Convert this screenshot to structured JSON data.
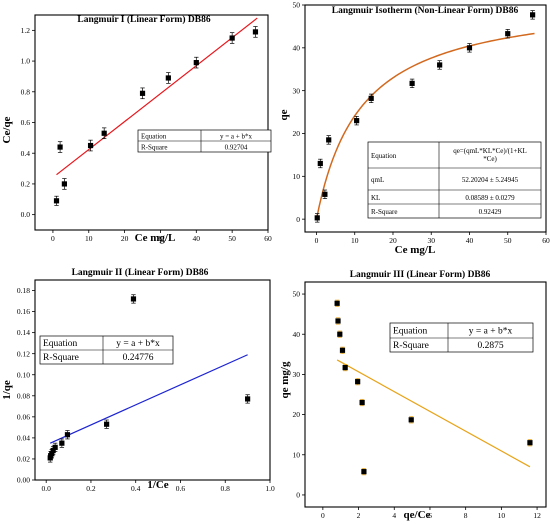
{
  "chart_data": [
    {
      "type": "scatter",
      "title": "Langmuir I (Linear Form) DB86",
      "xlabel": "Ce mg/L",
      "ylabel": "Ce/qe",
      "xlim": [
        -5,
        60
      ],
      "ylim": [
        -0.1,
        1.3
      ],
      "xticks": [
        "0",
        "10",
        "20",
        "30",
        "40",
        "50",
        "60"
      ],
      "yticks": [
        "0.0",
        "0.2",
        "0.4",
        "0.6",
        "0.8",
        "1.0",
        "1.2"
      ],
      "grid": false,
      "colors": {
        "points": "#000000",
        "fit": "#e8161c"
      },
      "points": [
        {
          "x": 1.0,
          "y": 0.09,
          "err": 0.03
        },
        {
          "x": 2.0,
          "y": 0.44,
          "err": 0.035
        },
        {
          "x": 3.2,
          "y": 0.2,
          "err": 0.035
        },
        {
          "x": 10.5,
          "y": 0.45,
          "err": 0.035
        },
        {
          "x": 14.3,
          "y": 0.53,
          "err": 0.035
        },
        {
          "x": 25.0,
          "y": 0.79,
          "err": 0.035
        },
        {
          "x": 32.2,
          "y": 0.89,
          "err": 0.035
        },
        {
          "x": 40.0,
          "y": 0.99,
          "err": 0.035
        },
        {
          "x": 50.0,
          "y": 1.15,
          "err": 0.035
        },
        {
          "x": 56.5,
          "y": 1.19,
          "err": 0.035
        }
      ],
      "fit": {
        "x": [
          1,
          57
        ],
        "y": [
          0.26,
          1.28
        ]
      },
      "table": [
        [
          "Equation",
          "y = a + b*x"
        ],
        [
          "R-Square",
          "0.92704"
        ]
      ]
    },
    {
      "type": "scatter",
      "title": "Langmuir Isotherm (Non-Linear Form) DB86",
      "xlabel": "Ce mg/L",
      "ylabel": "qe",
      "xlim": [
        -3,
        60
      ],
      "ylim": [
        -3,
        50
      ],
      "xticks": [
        "0",
        "10",
        "20",
        "30",
        "40",
        "50",
        "60"
      ],
      "yticks": [
        "0",
        "10",
        "20",
        "30",
        "40",
        "50"
      ],
      "grid": false,
      "colors": {
        "points": "#000000",
        "fit": "#d2691e"
      },
      "points": [
        {
          "x": 0.2,
          "y": 0.3,
          "err": 1.0
        },
        {
          "x": 1.0,
          "y": 13.0,
          "err": 1.0
        },
        {
          "x": 2.2,
          "y": 5.8,
          "err": 1.0
        },
        {
          "x": 3.2,
          "y": 18.5,
          "err": 1.0
        },
        {
          "x": 10.5,
          "y": 23.0,
          "err": 1.0
        },
        {
          "x": 14.3,
          "y": 28.2,
          "err": 1.0
        },
        {
          "x": 25.0,
          "y": 31.7,
          "err": 1.0
        },
        {
          "x": 32.2,
          "y": 36.0,
          "err": 1.0
        },
        {
          "x": 40.0,
          "y": 40.0,
          "err": 1.0
        },
        {
          "x": 50.0,
          "y": 43.3,
          "err": 1.0
        },
        {
          "x": 56.5,
          "y": 47.7,
          "err": 1.0
        }
      ],
      "fit": {
        "model": "langmuir",
        "qmL": 52.20204,
        "KL": 0.08589,
        "x_from": 0,
        "x_to": 57
      },
      "table": [
        [
          "Equation",
          "qe=(qmL*KL*Ce)/(1+KL *Ce)"
        ],
        [
          "qmL",
          "52.20204 ± 5.24945"
        ],
        [
          "KL",
          "0.08589 ± 0.0279"
        ],
        [
          "R-Square",
          "0.92429"
        ]
      ]
    },
    {
      "type": "scatter",
      "title": "Langmuir II (Linear Form) DB86",
      "xlabel": "1/Ce",
      "ylabel": "1/qe",
      "xlim": [
        -0.05,
        1.0
      ],
      "ylim": [
        0.0,
        0.19
      ],
      "xticks": [
        "0.0",
        "0.2",
        "0.4",
        "0.6",
        "0.8",
        "1.0"
      ],
      "yticks": [
        "0.00",
        "0.02",
        "0.04",
        "0.06",
        "0.08",
        "0.10",
        "0.12",
        "0.14",
        "0.16",
        "0.18"
      ],
      "grid": false,
      "colors": {
        "points": "#000000",
        "fit": "#1c23d2"
      },
      "points": [
        {
          "x": 0.018,
          "y": 0.021,
          "err": 0.004
        },
        {
          "x": 0.02,
          "y": 0.023,
          "err": 0.004
        },
        {
          "x": 0.025,
          "y": 0.025,
          "err": 0.004
        },
        {
          "x": 0.031,
          "y": 0.028,
          "err": 0.004
        },
        {
          "x": 0.04,
          "y": 0.031,
          "err": 0.004
        },
        {
          "x": 0.07,
          "y": 0.035,
          "err": 0.004
        },
        {
          "x": 0.095,
          "y": 0.043,
          "err": 0.004
        },
        {
          "x": 0.27,
          "y": 0.053,
          "err": 0.004
        },
        {
          "x": 0.39,
          "y": 0.172,
          "err": 0.004
        },
        {
          "x": 0.9,
          "y": 0.077,
          "err": 0.004
        }
      ],
      "fit": {
        "x": [
          0.018,
          0.9
        ],
        "y": [
          0.035,
          0.119
        ]
      },
      "table": [
        [
          "Equation",
          "y = a + b*x"
        ],
        [
          "R-Square",
          "0.24776"
        ]
      ]
    },
    {
      "type": "scatter",
      "title": "Langmuir III (Linear Form) DB86",
      "xlabel": "qe/Ce",
      "ylabel": "qe mg/g",
      "xlim": [
        -1,
        12.5
      ],
      "ylim": [
        -3,
        53
      ],
      "xticks": [
        "0",
        "2",
        "4",
        "6",
        "8",
        "10",
        "12"
      ],
      "yticks": [
        "0",
        "10",
        "20",
        "30",
        "40",
        "50"
      ],
      "grid": false,
      "colors": {
        "points": "#000000",
        "fit": "#e8a317",
        "err": "#e8a317"
      },
      "points": [
        {
          "x": 0.8,
          "y": 47.7,
          "err": 0.8
        },
        {
          "x": 0.85,
          "y": 43.3,
          "err": 0.8
        },
        {
          "x": 0.95,
          "y": 40.0,
          "err": 0.8
        },
        {
          "x": 1.1,
          "y": 36.0,
          "err": 0.8
        },
        {
          "x": 1.25,
          "y": 31.7,
          "err": 0.8
        },
        {
          "x": 1.95,
          "y": 28.2,
          "err": 0.8
        },
        {
          "x": 2.2,
          "y": 23.0,
          "err": 0.8
        },
        {
          "x": 2.3,
          "y": 5.8,
          "err": 0.8
        },
        {
          "x": 4.95,
          "y": 18.7,
          "err": 0.8
        },
        {
          "x": 11.6,
          "y": 13.0,
          "err": 0.8
        }
      ],
      "fit": {
        "x": [
          0.8,
          11.6
        ],
        "y": [
          33.6,
          7.0
        ]
      },
      "table": [
        [
          "Equation",
          "y = a + b*x"
        ],
        [
          "R-Square",
          "0.2875"
        ]
      ]
    }
  ]
}
